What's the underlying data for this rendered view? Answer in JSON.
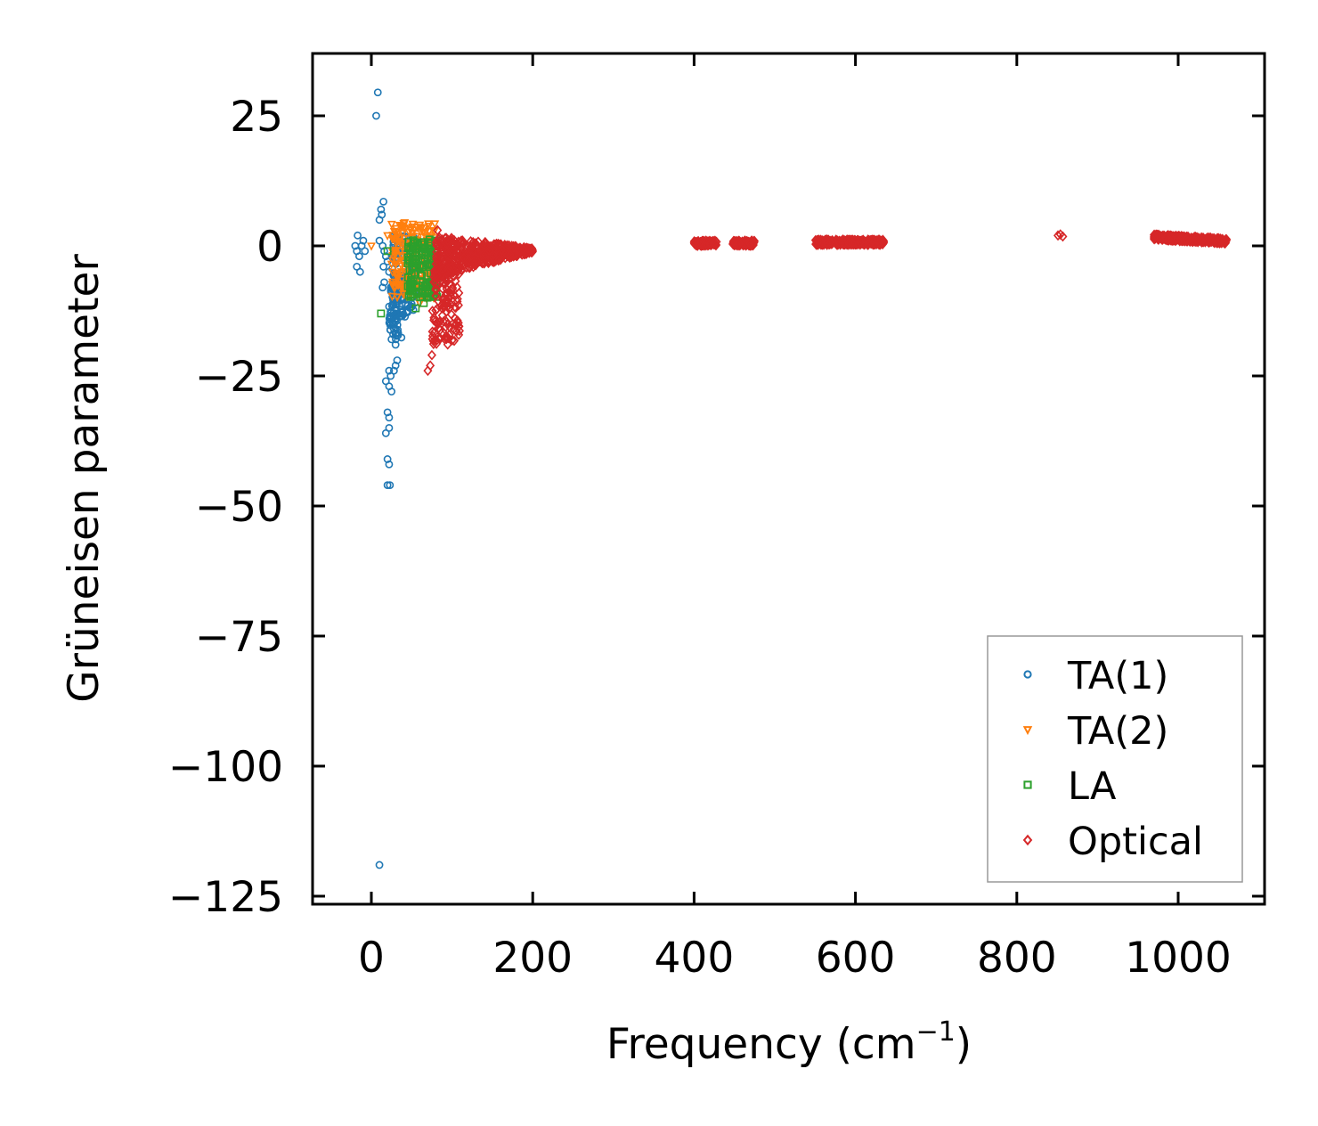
{
  "chart_data": {
    "type": "scatter",
    "title": "",
    "xlabel": "Frequency (cm",
    "xlabel_superscript": "−1",
    "xlabel_suffix": ")",
    "ylabel": "Grüneisen parameter",
    "xlim": [
      -72,
      1110
    ],
    "ylim": [
      -127,
      37
    ],
    "xticks": [
      0,
      200,
      400,
      600,
      800,
      1000
    ],
    "xtick_labels": [
      "0",
      "200",
      "400",
      "600",
      "800",
      "1000"
    ],
    "yticks": [
      25,
      0,
      -25,
      -50,
      -75,
      -100,
      -125
    ],
    "ytick_labels": [
      "25",
      "0",
      "−25",
      "−50",
      "−75",
      "−100",
      "−125"
    ],
    "legend_position": "lower-right",
    "series": [
      {
        "name": "TA(1)",
        "color": "#1f77b4",
        "marker": "circle",
        "points": [
          [
            8,
            29.5
          ],
          [
            6,
            25
          ],
          [
            15,
            8.5
          ],
          [
            12,
            7
          ],
          [
            13,
            6
          ],
          [
            10,
            5
          ],
          [
            -17,
            2
          ],
          [
            -10,
            1
          ],
          [
            -20,
            0
          ],
          [
            -12,
            0
          ],
          [
            -18,
            -1
          ],
          [
            -8,
            -1
          ],
          [
            -15,
            -2
          ],
          [
            -18,
            -4
          ],
          [
            -14,
            -5
          ],
          [
            10,
            1
          ],
          [
            14,
            0
          ],
          [
            16,
            -1
          ],
          [
            18,
            -2
          ],
          [
            15,
            -4
          ],
          [
            16,
            -7
          ],
          [
            14,
            -8
          ],
          [
            20,
            -3
          ],
          [
            22,
            -5
          ],
          [
            24,
            -8
          ],
          [
            28,
            -10
          ],
          [
            30,
            -13
          ],
          [
            28,
            -15
          ],
          [
            27,
            -17
          ],
          [
            30,
            -19
          ],
          [
            32,
            -22
          ],
          [
            28,
            -24
          ],
          [
            30,
            -23
          ],
          [
            22,
            -24
          ],
          [
            18,
            -26
          ],
          [
            22,
            -27
          ],
          [
            25,
            -28
          ],
          [
            24,
            -25
          ],
          [
            20,
            -32
          ],
          [
            22,
            -33
          ],
          [
            18,
            -36
          ],
          [
            22,
            -35
          ],
          [
            20,
            -41
          ],
          [
            22,
            -42
          ],
          [
            20,
            -46
          ],
          [
            23,
            -46
          ],
          [
            10,
            -119
          ]
        ],
        "bands": [
          {
            "x": [
              25,
              55
            ],
            "y_top": 2,
            "y_bottom": -14
          },
          {
            "x": [
              22,
              40
            ],
            "y_top": -5,
            "y_bottom": -18
          }
        ]
      },
      {
        "name": "TA(2)",
        "color": "#ff7f0e",
        "marker": "triangle-down",
        "points": [
          [
            0,
            0
          ],
          [
            20,
            2
          ],
          [
            60,
            -11
          ],
          [
            68,
            -10
          ],
          [
            35,
            4
          ],
          [
            45,
            -3
          ]
        ],
        "bands": [
          {
            "x": [
              25,
              80
            ],
            "y_top": 4.5,
            "y_bottom": -10
          }
        ]
      },
      {
        "name": "LA",
        "color": "#2ca02c",
        "marker": "square",
        "points": [
          [
            12,
            -13
          ],
          [
            55,
            -12
          ],
          [
            65,
            -11
          ],
          [
            20,
            -1
          ],
          [
            72,
            -9
          ],
          [
            80,
            1
          ]
        ],
        "bands": [
          {
            "x": [
              45,
              82
            ],
            "y_top": 1.5,
            "y_bottom": -10
          }
        ]
      },
      {
        "name": "Optical",
        "color": "#d62728",
        "marker": "diamond",
        "points": [
          [
            82,
            3
          ],
          [
            70,
            -24
          ],
          [
            73,
            -23
          ],
          [
            75,
            -21
          ],
          [
            851,
            2
          ],
          [
            854,
            2.2
          ],
          [
            857,
            1.8
          ]
        ],
        "bands": [
          {
            "x": [
              80,
              200
            ],
            "y_top": 2,
            "y_bottom": -6,
            "shape": "tail"
          },
          {
            "x": [
              75,
              110
            ],
            "y_top": -4,
            "y_bottom": -19
          },
          {
            "x": [
              400,
              428
            ],
            "y_top": 1,
            "y_bottom": 0
          },
          {
            "x": [
              448,
              475
            ],
            "y_top": 1,
            "y_bottom": 0
          },
          {
            "x": [
              550,
              635
            ],
            "y_top": 1.2,
            "y_bottom": 0.2
          },
          {
            "x": [
              970,
              1060
            ],
            "y_top": 2.2,
            "y_bottom": 1.2,
            "shape": "slope"
          }
        ]
      }
    ]
  }
}
